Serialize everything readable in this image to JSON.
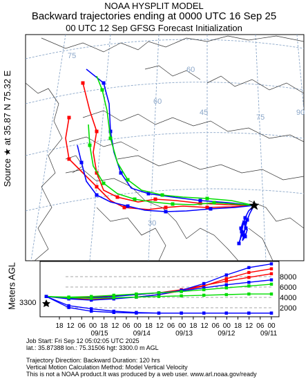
{
  "header": {
    "model": "NOAA HYSPLIT MODEL",
    "title": "Backward trajectories ending at 0000 UTC 16 Sep 25",
    "subtitle": "00 UTC 12 Sep    GFSG  Forecast Initialization"
  },
  "side_label": "Source ★ at   35.87 N   75.32 E",
  "map": {
    "lat_labels": [
      "75",
      "60",
      "45",
      "30"
    ],
    "lon_labels": [
      "60",
      "75",
      "90"
    ]
  },
  "vertical_panel": {
    "axis_label": "Meters AGL",
    "start_height_label": "3300",
    "height_ticks": [
      "8000",
      "6000",
      "4000",
      "2000"
    ],
    "time_ticks": [
      "18",
      "12",
      "06",
      "00",
      "18",
      "12",
      "06",
      "00",
      "18",
      "12",
      "06",
      "00",
      "18",
      "12",
      "06",
      "00",
      "18",
      "12",
      "06",
      "00"
    ],
    "date_labels": [
      "09/15",
      "09/14",
      "09/13",
      "09/12",
      "09/11"
    ]
  },
  "chart_data": {
    "type": "line",
    "title": "Backward trajectories ending at 0000 UTC 16 Sep 25",
    "source": {
      "lat": 35.87,
      "lon": 75.32,
      "height_m_agl": 3300
    },
    "duration_hrs": 120,
    "ylabel": "Meters AGL",
    "ylim": [
      0,
      9000
    ],
    "ytick_labels": [
      2000,
      4000,
      6000,
      8000
    ],
    "series": [
      {
        "color": "#ff0000",
        "heights": [
          3300,
          3000,
          2800,
          3000,
          3200,
          3600,
          4200,
          5000,
          6200,
          7200,
          7800
        ]
      },
      {
        "color": "#ff0000",
        "heights": [
          3300,
          3100,
          3200,
          3400,
          3600,
          3900,
          4400,
          5100,
          5800,
          6400,
          7000
        ]
      },
      {
        "color": "#0000ff",
        "heights": [
          3300,
          2900,
          2700,
          2900,
          3200,
          3600,
          4300,
          5400,
          6800,
          8000,
          8600
        ]
      },
      {
        "color": "#0000ff",
        "heights": [
          3300,
          3000,
          3100,
          3300,
          3600,
          3900,
          4200,
          4700,
          5200,
          5600,
          6000
        ]
      },
      {
        "color": "#00dd00",
        "heights": [
          3300,
          3200,
          3300,
          3500,
          3700,
          3900,
          4100,
          4400,
          4700,
          5000,
          5300
        ]
      },
      {
        "color": "#00dd00",
        "heights": [
          3300,
          3100,
          3000,
          3100,
          3200,
          3300,
          3400,
          3500,
          3600,
          3700,
          3700
        ]
      },
      {
        "color": "#0000ff",
        "heights": [
          3300,
          1500,
          900,
          700,
          600,
          600,
          600,
          600,
          600,
          600,
          600
        ]
      },
      {
        "color": "#0000ff",
        "heights": [
          3300,
          1800,
          1300,
          900,
          700,
          600,
          600,
          600,
          600,
          600,
          600
        ]
      }
    ]
  },
  "footer": {
    "job_start": "Job Start: Fri Sep 12 05:02:05 UTC 2025",
    "coords": "lat.: 35.87388   lon.: 75.31506   hgt: 3300.0 m AGL",
    "direction": "Trajectory Direction: Backward        Duration: 120 hrs",
    "vertical": "Vertical Motion Calculation Method: Model Vertical Velocity",
    "disclaimer": "This is not a NOAA product.It was produced by a web user. www.arl.noaa.gov/ready"
  }
}
